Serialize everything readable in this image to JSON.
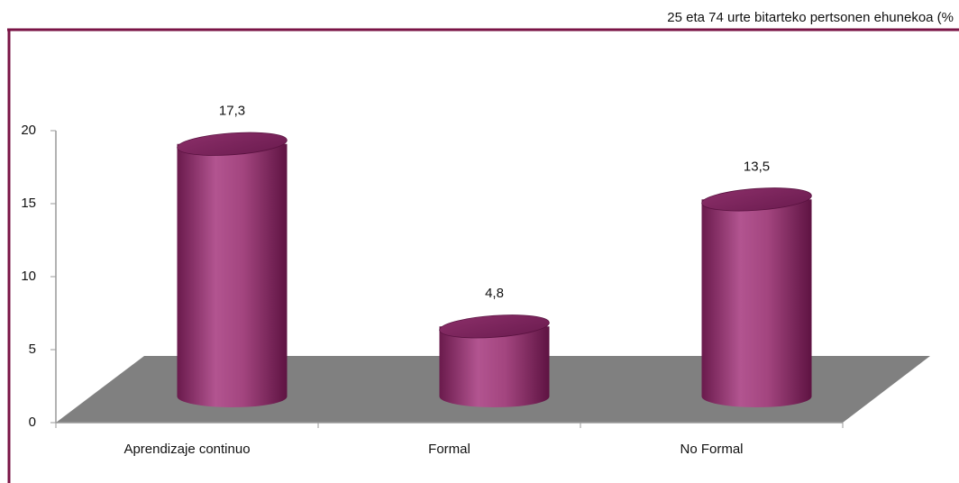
{
  "chart_data": {
    "type": "bar3d",
    "title": "25 eta 74 urte bitarteko pertsonen ehunekoa (%",
    "categories": [
      "Aprendizaje continuo",
      "Formal",
      "No Formal"
    ],
    "values": [
      17.3,
      4.8,
      13.5
    ],
    "value_labels": [
      "17,3",
      "4,8",
      "13,5"
    ],
    "color": "#9c3c78",
    "ylim": [
      0,
      20
    ],
    "yticks": [
      0,
      5,
      10,
      15,
      20
    ]
  }
}
